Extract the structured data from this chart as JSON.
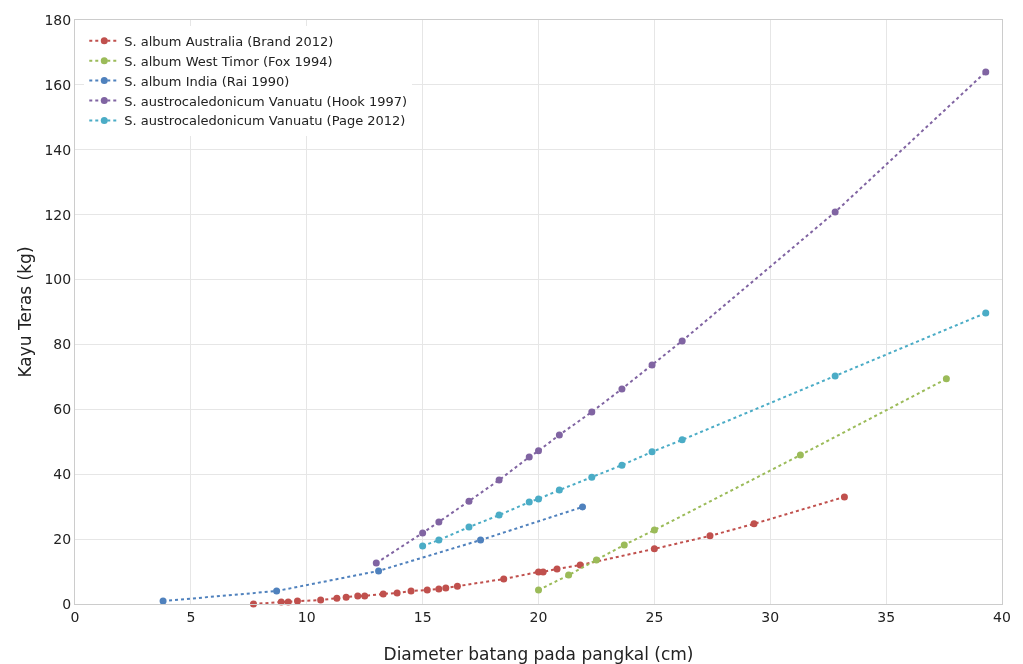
{
  "chart_data": {
    "type": "line",
    "xlabel": "Diameter batang pada pangkal (cm)",
    "ylabel": "Kayu Teras (kg)",
    "xlim": [
      0,
      40
    ],
    "xticks": [
      0,
      5,
      10,
      15,
      20,
      25,
      30,
      35,
      40
    ],
    "ylim": [
      0,
      180
    ],
    "yticks": [
      0,
      20,
      40,
      60,
      80,
      100,
      120,
      140,
      160,
      180
    ],
    "grid": true,
    "legend": "top left",
    "marker": "circle",
    "line_style": "dotted",
    "series": [
      {
        "name": "S. album Australia (Brand 2012)",
        "color": "#c0504d",
        "x": [
          7.7,
          8.9,
          9.2,
          9.6,
          10.6,
          11.3,
          11.7,
          12.2,
          12.5,
          13.3,
          13.9,
          14.5,
          15.2,
          15.7,
          16.0,
          16.5,
          18.5,
          20.0,
          20.2,
          20.8,
          21.8,
          25.0,
          27.4,
          29.3,
          33.2
        ],
        "values": [
          0,
          0.6,
          0.6,
          0.9,
          1.2,
          1.8,
          2.1,
          2.5,
          2.5,
          3.1,
          3.4,
          4.0,
          4.3,
          4.6,
          4.9,
          5.5,
          7.7,
          9.9,
          9.9,
          10.8,
          12.0,
          17.0,
          21.0,
          24.7,
          33.0
        ]
      },
      {
        "name": "S. album West Timor (Fox 1994)",
        "color": "#9bbb59",
        "x": [
          20.0,
          21.3,
          22.5,
          23.7,
          25.0,
          31.3,
          37.6
        ],
        "values": [
          4.3,
          8.9,
          13.6,
          18.2,
          22.8,
          45.9,
          69.4
        ]
      },
      {
        "name": "S. album India (Rai 1990)",
        "color": "#4f81bd",
        "x": [
          3.8,
          8.7,
          13.1,
          17.5,
          21.9
        ],
        "values": [
          0.9,
          4.0,
          10.2,
          19.7,
          29.9
        ]
      },
      {
        "name": "S. austrocaledonicum Vanuatu (Hook 1997)",
        "color": "#8064a2",
        "x": [
          13.0,
          15.0,
          15.7,
          17.0,
          18.3,
          19.6,
          20.0,
          20.9,
          22.3,
          23.6,
          24.9,
          26.2,
          32.8,
          39.3
        ],
        "values": [
          12.6,
          21.9,
          25.3,
          31.7,
          38.2,
          45.3,
          47.2,
          52.1,
          59.2,
          66.3,
          73.7,
          81.1,
          120.8,
          164.0
        ]
      },
      {
        "name": "S. austrocaledonicum Vanuatu (Page 2012)",
        "color": "#4bacc6",
        "x": [
          15.0,
          15.7,
          17.0,
          18.3,
          19.6,
          20.0,
          20.9,
          22.3,
          23.6,
          24.9,
          26.2,
          32.8,
          39.3
        ],
        "values": [
          17.9,
          19.7,
          23.7,
          27.4,
          31.4,
          32.4,
          35.1,
          39.1,
          42.8,
          46.9,
          50.6,
          70.3,
          89.7
        ]
      }
    ]
  }
}
